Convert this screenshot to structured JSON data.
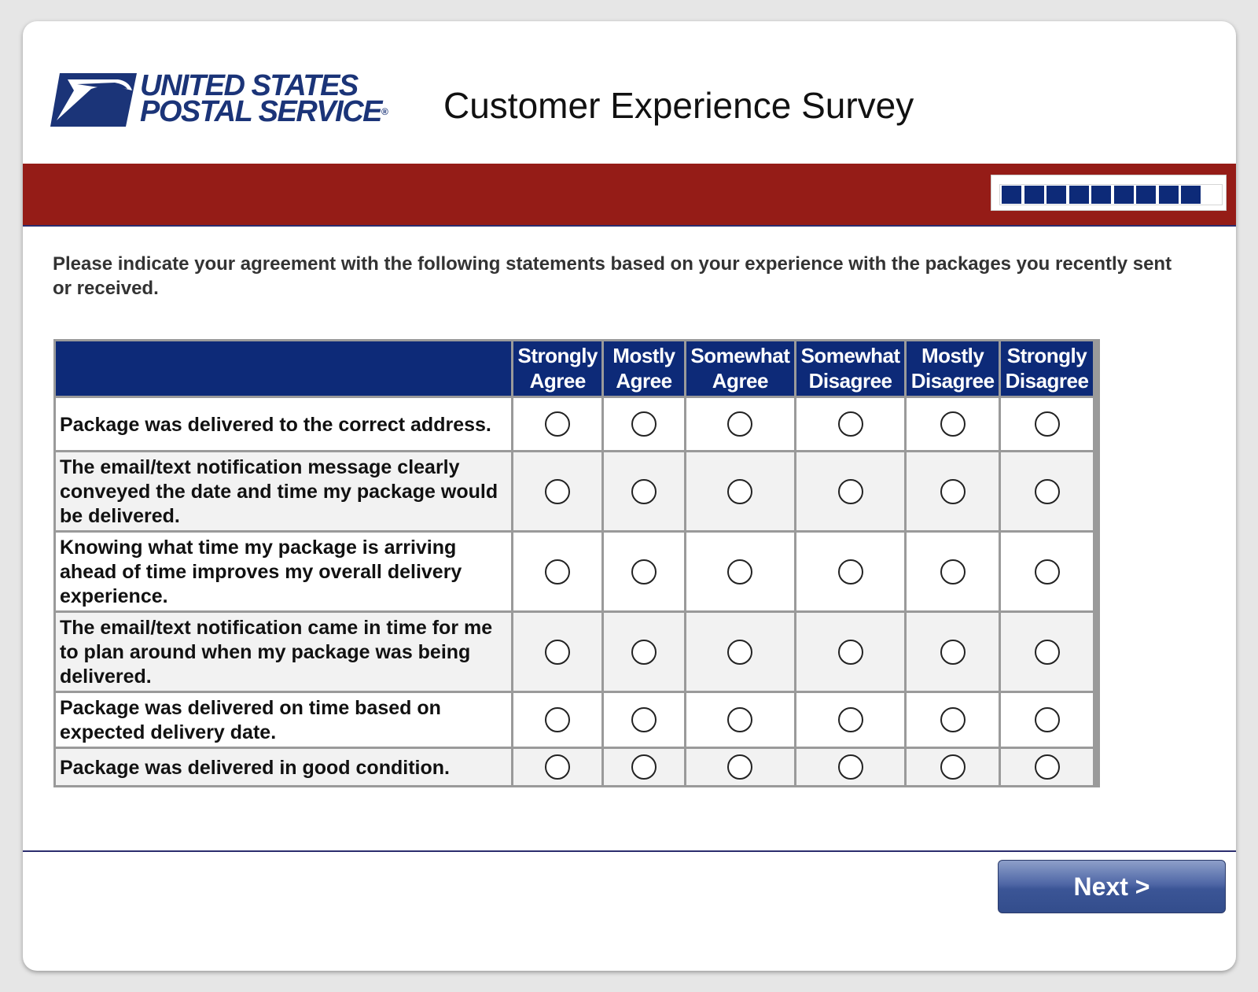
{
  "header": {
    "logo_line1": "UNITED STATES",
    "logo_line2": "POSTAL SERVICE",
    "logo_mark": "®",
    "title": "Customer Experience Survey"
  },
  "progress": {
    "completed_fraction": 0.9,
    "segments_total": 10,
    "segments_filled": 9
  },
  "instructions": "Please indicate your agreement with the following statements based on your experience with the packages you recently sent or received.",
  "columns": [
    {
      "line1": "Strongly",
      "line2": "Agree"
    },
    {
      "line1": "Mostly",
      "line2": "Agree"
    },
    {
      "line1": "Somewhat",
      "line2": "Agree"
    },
    {
      "line1": "Somewhat",
      "line2": "Disagree"
    },
    {
      "line1": "Mostly",
      "line2": "Disagree"
    },
    {
      "line1": "Strongly",
      "line2": "Disagree"
    }
  ],
  "statements": [
    "Package was delivered to the correct address.",
    "The email/text notification message clearly conveyed the date and time my package would be delivered.",
    "Knowing what time my package is arriving ahead of time improves my overall delivery experience.",
    "The email/text notification came in time for me to plan around when my package was being delivered.",
    "Package was delivered on time based on expected delivery date.",
    "Package was delivered in good condition."
  ],
  "next_label": "Next >",
  "colors": {
    "brand_blue": "#0d2a78",
    "header_red": "#951c17",
    "logo_blue": "#1b3478"
  },
  "icons": {
    "logo": "eagle-logo-icon",
    "radio": "radio-unchecked-icon"
  }
}
